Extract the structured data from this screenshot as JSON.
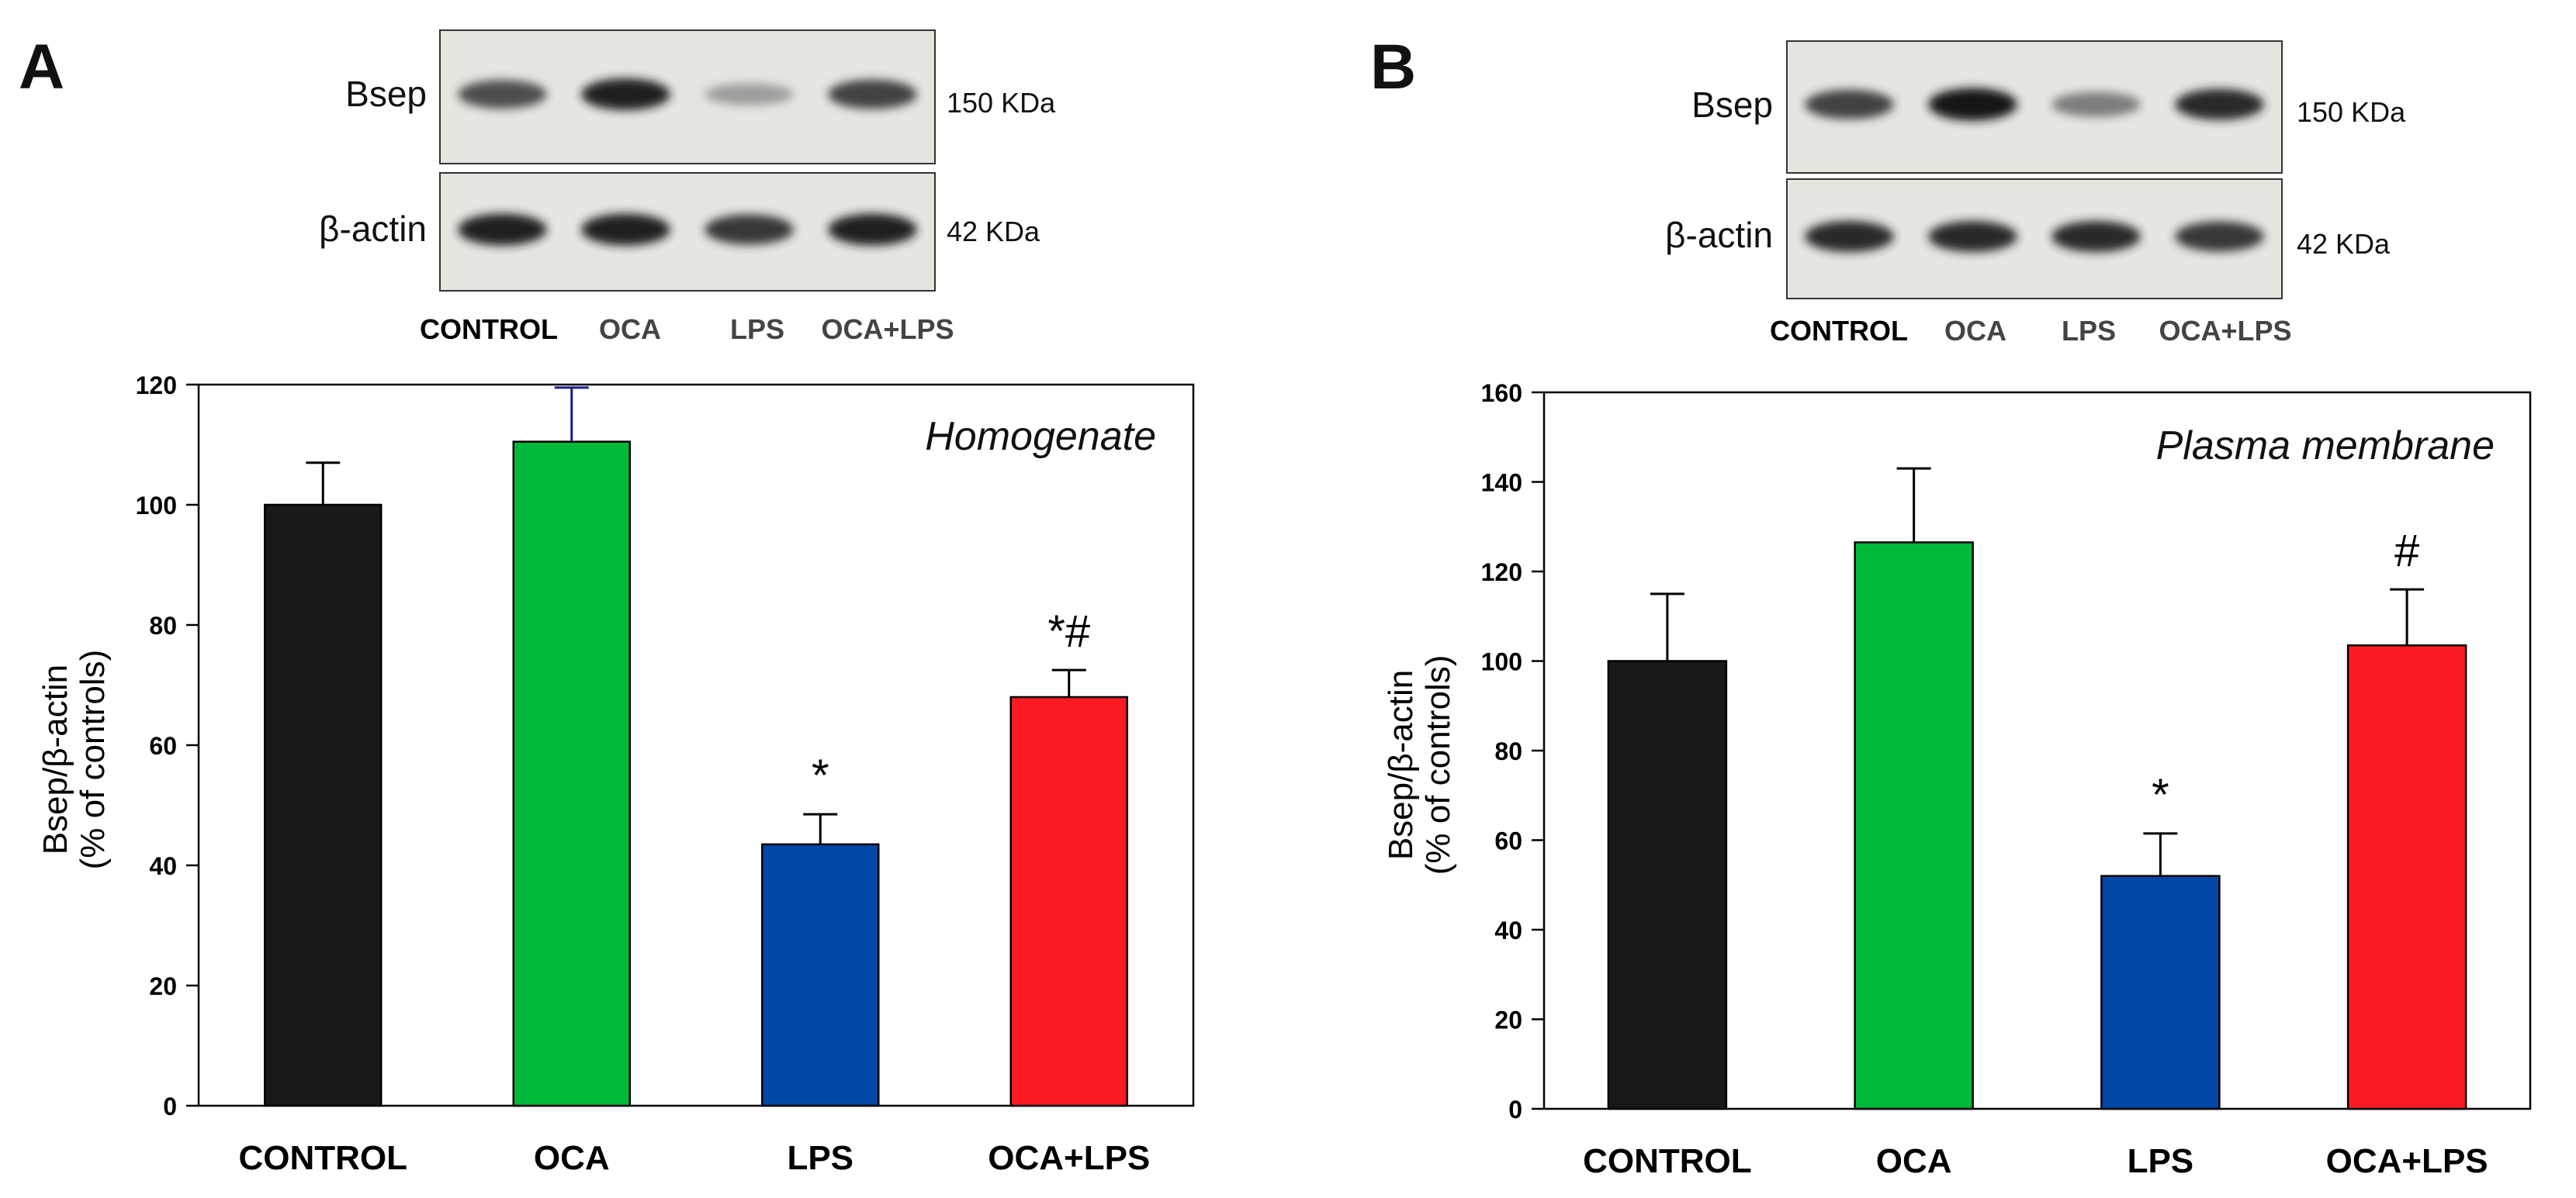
{
  "panels": [
    {
      "letter": "A",
      "blot": {
        "rows": [
          {
            "protein": "Bsep",
            "mw": "150 KDa",
            "intensities": [
              0.75,
              0.95,
              0.3,
              0.8
            ]
          },
          {
            "protein": "β-actin",
            "mw": "42 KDa",
            "intensities": [
              0.95,
              0.95,
              0.85,
              0.95
            ]
          }
        ],
        "lanes": [
          "CONTROL",
          "OCA",
          "LPS",
          "OCA+LPS"
        ]
      }
    },
    {
      "letter": "B",
      "blot": {
        "rows": [
          {
            "protein": "Bsep",
            "mw": "150 KDa",
            "intensities": [
              0.8,
              1.0,
              0.5,
              0.9
            ]
          },
          {
            "protein": "β-actin",
            "mw": "42 KDa",
            "intensities": [
              0.9,
              0.9,
              0.9,
              0.85
            ]
          }
        ],
        "lanes": [
          "CONTROL",
          "OCA",
          "LPS",
          "OCA+LPS"
        ]
      }
    }
  ],
  "chart_data": [
    {
      "type": "bar",
      "title": "Homogenate",
      "ylabel": [
        "Bsep/β-actin",
        "(% of controls)"
      ],
      "xlabel": "",
      "categories": [
        "CONTROL",
        "OCA",
        "LPS",
        "OCA+LPS"
      ],
      "values": [
        100,
        110.5,
        43.5,
        68
      ],
      "errors": [
        7,
        9,
        5,
        4.5
      ],
      "significance": [
        "",
        "",
        "*",
        "*#"
      ],
      "colors": [
        "#1a1718",
        "#00b93a",
        "#0047a8",
        "#fb1a22"
      ],
      "error_colors": [
        "#000000",
        "#1a1a8a",
        "#000000",
        "#000000"
      ],
      "ylim": [
        0,
        120
      ],
      "yticks": [
        0,
        20,
        40,
        60,
        80,
        100,
        120
      ],
      "grid": false,
      "legend": "none"
    },
    {
      "type": "bar",
      "title": "Plasma membrane",
      "ylabel": [
        "Bsep/β-actin",
        "(% of controls)"
      ],
      "xlabel": "",
      "categories": [
        "CONTROL",
        "OCA",
        "LPS",
        "OCA+LPS"
      ],
      "values": [
        100,
        126.5,
        52,
        103.5
      ],
      "errors": [
        15,
        16.5,
        9.5,
        12.5
      ],
      "significance": [
        "",
        "",
        "*",
        "#"
      ],
      "colors": [
        "#1a1718",
        "#00b93a",
        "#0047a8",
        "#fb1a22"
      ],
      "error_colors": [
        "#000000",
        "#000000",
        "#000000",
        "#000000"
      ],
      "ylim": [
        0,
        160
      ],
      "yticks": [
        0,
        20,
        40,
        60,
        80,
        100,
        120,
        140,
        160
      ],
      "grid": false,
      "legend": "none"
    }
  ]
}
